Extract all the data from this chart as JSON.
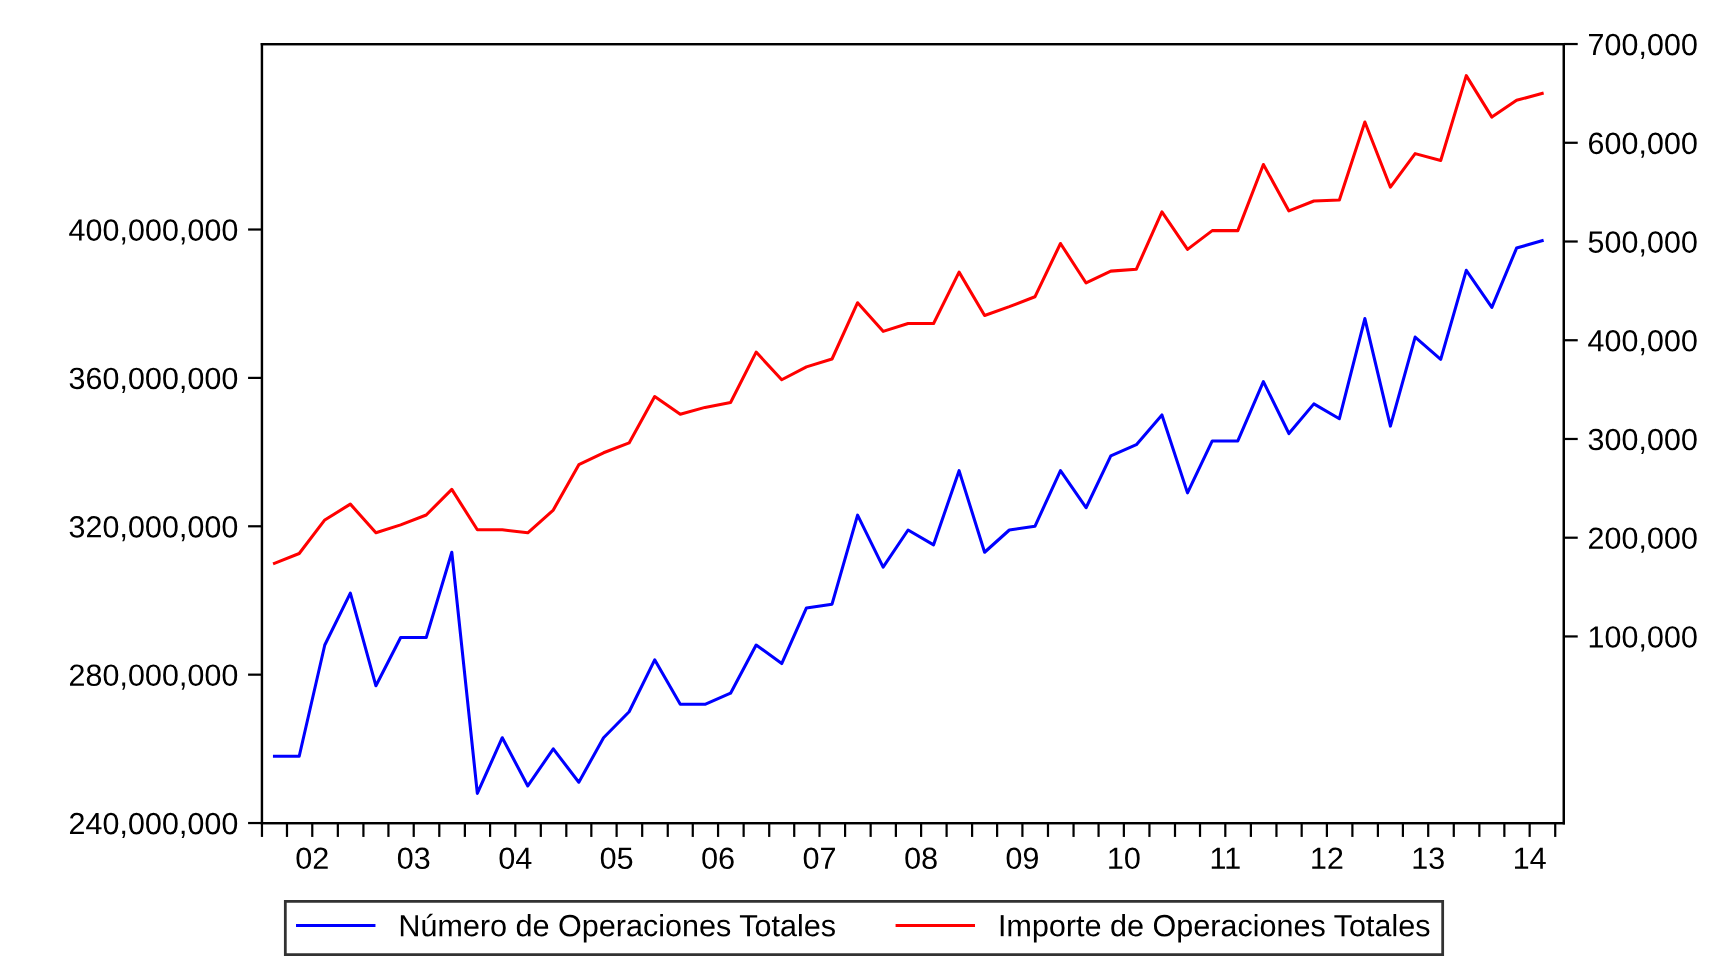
{
  "chart_data": {
    "type": "line",
    "x": [
      "2002-02-15",
      "2002-05-15",
      "2002-08-15",
      "2002-11-15",
      "2003-02-15",
      "2003-05-15",
      "2003-08-15",
      "2003-11-15",
      "2004-02-15",
      "2004-05-15",
      "2004-08-15",
      "2004-11-15",
      "2005-02-15",
      "2005-05-15",
      "2005-08-15",
      "2005-11-15",
      "2006-02-15",
      "2006-05-15",
      "2006-08-15",
      "2006-11-15",
      "2007-02-15",
      "2007-05-15",
      "2007-08-15",
      "2007-11-15",
      "2008-02-15",
      "2008-05-15",
      "2008-08-15",
      "2008-11-15",
      "2009-02-15",
      "2009-05-15",
      "2009-08-15",
      "2009-11-15",
      "2010-02-15",
      "2010-05-15",
      "2010-08-15",
      "2010-11-15",
      "2011-02-15",
      "2011-05-15",
      "2011-08-15",
      "2011-11-15",
      "2012-02-15",
      "2012-05-15",
      "2012-08-15",
      "2012-11-15",
      "2013-02-15",
      "2013-05-15",
      "2013-08-15",
      "2013-11-15",
      "2014-02-15",
      "2014-05-15",
      "2014-08-15"
    ],
    "series": [
      {
        "name": "Número de Operaciones Totales",
        "color": "#0000ff",
        "values": [
          258000000,
          258000000,
          288000000,
          302000000,
          277000000,
          290000000,
          290000000,
          313000000,
          248000000,
          263000000,
          250000000,
          260000000,
          251000000,
          263000000,
          270000000,
          284000000,
          272000000,
          272000000,
          275000000,
          288000000,
          283000000,
          298000000,
          299000000,
          323000000,
          309000000,
          319000000,
          315000000,
          335000000,
          313000000,
          319000000,
          320000000,
          335000000,
          325000000,
          339000000,
          342000000,
          350000000,
          329000000,
          343000000,
          343000000,
          359000000,
          345000000,
          353000000,
          349000000,
          376000000,
          347000000,
          371000000,
          365000000,
          389000000,
          379000000,
          395000000,
          397000000
        ]
      },
      {
        "name": "Importe de Operaciones Totales",
        "color": "#ff0000",
        "axis": "y2",
        "values": [
          174000,
          184000,
          218000,
          234000,
          205000,
          213000,
          223000,
          249000,
          208000,
          208000,
          205000,
          228000,
          274000,
          286000,
          296000,
          343000,
          325000,
          332000,
          337000,
          388000,
          360000,
          373000,
          381000,
          438000,
          409000,
          417000,
          417000,
          469000,
          425000,
          434000,
          444000,
          498000,
          458000,
          470000,
          472000,
          530000,
          492000,
          511000,
          511000,
          578000,
          531000,
          541000,
          542000,
          621000,
          555000,
          589000,
          582000,
          668000,
          626000,
          643000,
          650000
        ]
      }
    ],
    "xlim": [
      "2002-01-01",
      "2014-11-01"
    ],
    "xticks": [
      {
        "value": "2002-01-01",
        "label": null
      },
      {
        "value": "2002-04-01",
        "label": null
      },
      {
        "value": "2002-07-01",
        "label": "02"
      },
      {
        "value": "2002-10-01",
        "label": null
      },
      {
        "value": "2003-01-01",
        "label": null
      },
      {
        "value": "2003-04-01",
        "label": null
      },
      {
        "value": "2003-07-01",
        "label": "03"
      },
      {
        "value": "2003-10-01",
        "label": null
      },
      {
        "value": "2004-01-01",
        "label": null
      },
      {
        "value": "2004-04-01",
        "label": null
      },
      {
        "value": "2004-07-01",
        "label": "04"
      },
      {
        "value": "2004-10-01",
        "label": null
      },
      {
        "value": "2005-01-01",
        "label": null
      },
      {
        "value": "2005-04-01",
        "label": null
      },
      {
        "value": "2005-07-01",
        "label": "05"
      },
      {
        "value": "2005-10-01",
        "label": null
      },
      {
        "value": "2006-01-01",
        "label": null
      },
      {
        "value": "2006-04-01",
        "label": null
      },
      {
        "value": "2006-07-01",
        "label": "06"
      },
      {
        "value": "2006-10-01",
        "label": null
      },
      {
        "value": "2007-01-01",
        "label": null
      },
      {
        "value": "2007-04-01",
        "label": null
      },
      {
        "value": "2007-07-01",
        "label": "07"
      },
      {
        "value": "2007-10-01",
        "label": null
      },
      {
        "value": "2008-01-01",
        "label": null
      },
      {
        "value": "2008-04-01",
        "label": null
      },
      {
        "value": "2008-07-01",
        "label": "08"
      },
      {
        "value": "2008-10-01",
        "label": null
      },
      {
        "value": "2009-01-01",
        "label": null
      },
      {
        "value": "2009-04-01",
        "label": null
      },
      {
        "value": "2009-07-01",
        "label": "09"
      },
      {
        "value": "2009-10-01",
        "label": null
      },
      {
        "value": "2010-01-01",
        "label": null
      },
      {
        "value": "2010-04-01",
        "label": null
      },
      {
        "value": "2010-07-01",
        "label": "10"
      },
      {
        "value": "2010-10-01",
        "label": null
      },
      {
        "value": "2011-01-01",
        "label": null
      },
      {
        "value": "2011-04-01",
        "label": null
      },
      {
        "value": "2011-07-01",
        "label": "11"
      },
      {
        "value": "2011-10-01",
        "label": null
      },
      {
        "value": "2012-01-01",
        "label": null
      },
      {
        "value": "2012-04-01",
        "label": null
      },
      {
        "value": "2012-07-01",
        "label": "12"
      },
      {
        "value": "2012-10-01",
        "label": null
      },
      {
        "value": "2013-01-01",
        "label": null
      },
      {
        "value": "2013-04-01",
        "label": null
      },
      {
        "value": "2013-07-01",
        "label": "13"
      },
      {
        "value": "2013-10-01",
        "label": null
      },
      {
        "value": "2014-01-01",
        "label": null
      },
      {
        "value": "2014-04-01",
        "label": null
      },
      {
        "value": "2014-07-01",
        "label": "14"
      },
      {
        "value": "2014-10-01",
        "label": null
      }
    ],
    "ylim": [
      240000000,
      450000000
    ],
    "yticks": [
      {
        "value": 240000000,
        "label": "240,000,000"
      },
      {
        "value": 280000000,
        "label": "280,000,000"
      },
      {
        "value": 320000000,
        "label": "320,000,000"
      },
      {
        "value": 360000000,
        "label": "360,000,000"
      },
      {
        "value": 400000000,
        "label": "400,000,000"
      }
    ],
    "y2lim": [
      -89000,
      700000
    ],
    "y2ticks": [
      {
        "value": 100000,
        "label": "100,000"
      },
      {
        "value": 200000,
        "label": "200,000"
      },
      {
        "value": 300000,
        "label": "300,000"
      },
      {
        "value": 400000,
        "label": "400,000"
      },
      {
        "value": 500000,
        "label": "500,000"
      },
      {
        "value": 600000,
        "label": "600,000"
      },
      {
        "value": 700000,
        "label": "700,000"
      }
    ],
    "grid": false,
    "legend": "bottom",
    "marker": "none",
    "line_style": "solid"
  }
}
